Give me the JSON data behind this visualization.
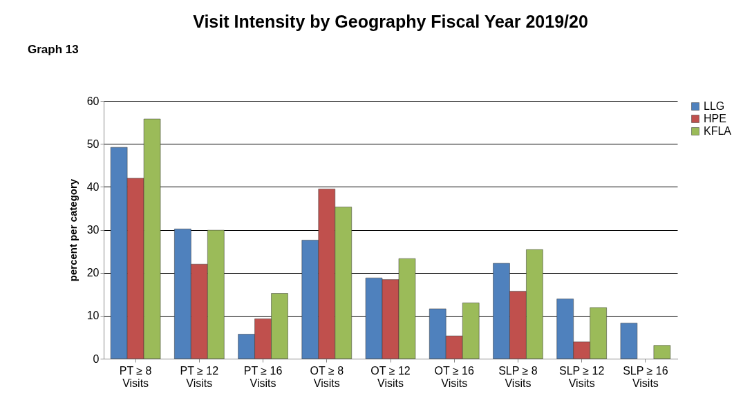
{
  "chart_data": {
    "type": "bar",
    "title": "Visit Intensity by Geography Fiscal Year 2019/20",
    "ylabel": "percent per category",
    "annotations": [
      "Graph 13"
    ],
    "categories": [
      "PT ≥ 8\nVisits",
      "PT ≥ 12\nVisits",
      "PT ≥ 16\nVisits",
      "OT ≥ 8\nVisits",
      "OT ≥ 12\nVisits",
      "OT ≥ 16\nVisits",
      "SLP ≥ 8\nVisits",
      "SLP ≥ 12\nVisits",
      "SLP ≥ 16\nVisits"
    ],
    "series": [
      {
        "name": "LLG",
        "color": "#4f81bd",
        "values": [
          49.2,
          30.2,
          5.7,
          27.6,
          18.8,
          11.6,
          22.2,
          13.9,
          8.3
        ]
      },
      {
        "name": "HPE",
        "color": "#c0504d",
        "values": [
          42.0,
          22.0,
          9.3,
          39.5,
          18.4,
          5.3,
          15.7,
          3.9,
          null
        ]
      },
      {
        "name": "KFLA",
        "color": "#9bbb59",
        "values": [
          55.8,
          29.9,
          15.2,
          35.3,
          23.3,
          13.0,
          25.4,
          11.9,
          3.1
        ]
      }
    ],
    "ylim": [
      0,
      60
    ],
    "yticks": [
      0,
      10,
      20,
      30,
      40,
      50,
      60
    ],
    "grid": "y",
    "legend": "right"
  }
}
